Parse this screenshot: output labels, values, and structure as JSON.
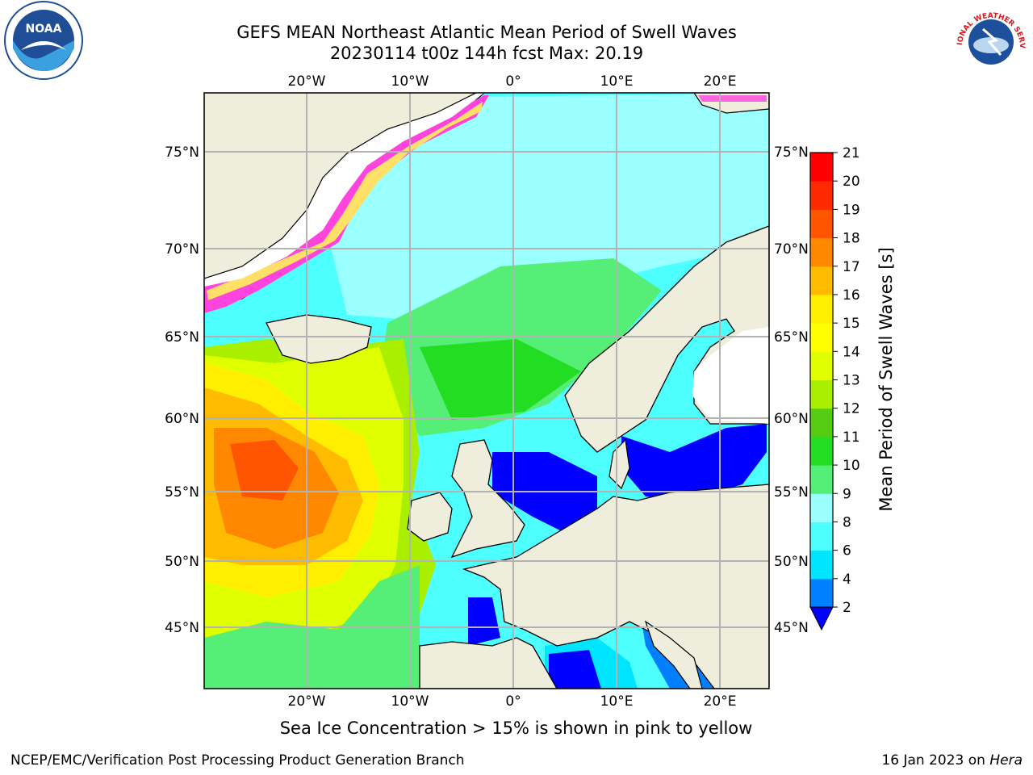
{
  "title_line1": "GEFS MEAN Northeast Atlantic Mean Period of Swell Waves",
  "title_line2": "20230114 t00z 144h fcst   Max: 20.19",
  "logos": {
    "left": "NOAA",
    "right": "NATIONAL WEATHER SERVICE"
  },
  "map": {
    "lon_labels": [
      "20°W",
      "10°W",
      "0°",
      "10°E",
      "20°E"
    ],
    "lat_labels": [
      "75°N",
      "70°N",
      "65°N",
      "60°N",
      "55°N",
      "50°N",
      "45°N"
    ],
    "colors": {
      "land": "#efeddb",
      "ice_pink": "#ff44dd",
      "ice_yellow": "#ffe066"
    }
  },
  "colorbar": {
    "label": "Mean Period of Swell Waves [s]",
    "ticks": [
      "2",
      "4",
      "6",
      "8",
      "9",
      "10",
      "11",
      "12",
      "13",
      "14",
      "15",
      "16",
      "17",
      "18",
      "19",
      "20",
      "21"
    ],
    "colors": [
      "#0000ff",
      "#0080ff",
      "#00e5ff",
      "#4dffff",
      "#99ffff",
      "#55ee77",
      "#22dd22",
      "#55cc11",
      "#aaee00",
      "#dfff00",
      "#ffff00",
      "#ffee00",
      "#ffbb00",
      "#ff8800",
      "#ff5500",
      "#ff2a00",
      "#ff0000"
    ]
  },
  "sea_ice_note": "Sea Ice Concentration > 15% is shown in pink to yellow",
  "footer_left": "NCEP/EMC/Verification Post Processing Product Generation Branch",
  "footer_date": "16 Jan 2023 on",
  "footer_machine": "Hera"
}
